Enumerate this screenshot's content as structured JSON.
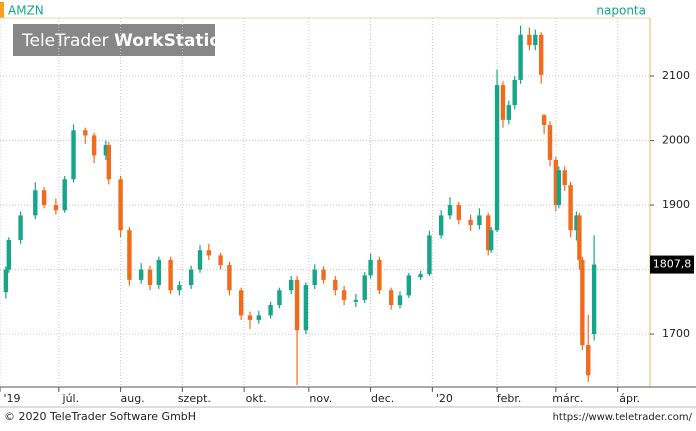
{
  "chart_data": {
    "type": "candlestick",
    "title": "AMZN",
    "subtitle": "naponta",
    "brand": [
      "TeleTrader",
      "WorkStation"
    ],
    "up_color": "#17a589",
    "down_color": "#f26b1d",
    "x": [
      0,
      1,
      5,
      10,
      13,
      17,
      20,
      23,
      27,
      30,
      34,
      35,
      39,
      42,
      46,
      49,
      52,
      56,
      59,
      63,
      66,
      69,
      73,
      76,
      80,
      83,
      86,
      90,
      93,
      97,
      99,
      102,
      105,
      108,
      112,
      115,
      119,
      122,
      124,
      127,
      131,
      134,
      137,
      141,
      144,
      148,
      151,
      154,
      158,
      161,
      164,
      165,
      167,
      169,
      171,
      173,
      175,
      178,
      180,
      182,
      183,
      185,
      187,
      188,
      190,
      192,
      194,
      195,
      196,
      198,
      200
    ],
    "open": [
      1765,
      1800,
      1846,
      1884,
      1923,
      1900,
      1892,
      1940,
      2016,
      2008,
      1977,
      1993,
      1940,
      1861,
      1784,
      1800,
      1776,
      1815,
      1768,
      1776,
      1800,
      1830,
      1822,
      1807,
      1768,
      1729,
      1722,
      1729,
      1745,
      1768,
      1784,
      1706,
      1776,
      1800,
      1784,
      1768,
      1750,
      1753,
      1791,
      1815,
      1768,
      1745,
      1760,
      1788,
      1793,
      1853,
      1884,
      1900,
      1877,
      1869,
      1884,
      1830,
      1861,
      2086,
      2032,
      2055,
      2094,
      2164,
      2148,
      2164,
      2040,
      2024,
      1970,
      1900,
      1954,
      1931,
      1861,
      1884,
      1815,
      1683,
      1700
    ],
    "high": [
      1805,
      1850,
      1890,
      1935,
      1928,
      1910,
      1945,
      2025,
      2020,
      2012,
      2000,
      1998,
      1945,
      1866,
      1810,
      1806,
      1820,
      1820,
      1782,
      1806,
      1838,
      1840,
      1826,
      1812,
      1772,
      1735,
      1736,
      1750,
      1772,
      1790,
      1790,
      1780,
      1808,
      1805,
      1790,
      1775,
      1762,
      1796,
      1825,
      1820,
      1772,
      1766,
      1795,
      1798,
      1860,
      1892,
      1912,
      1905,
      1885,
      1895,
      1888,
      1866,
      2110,
      2092,
      2062,
      2100,
      2178,
      2175,
      2172,
      2168,
      2040,
      2030,
      1975,
      1960,
      1960,
      1936,
      1890,
      1888,
      1820,
      1730,
      1853
    ],
    "low": [
      1755,
      1795,
      1840,
      1878,
      1895,
      1885,
      1888,
      1935,
      1995,
      1965,
      1970,
      1932,
      1850,
      1775,
      1778,
      1768,
      1770,
      1762,
      1760,
      1770,
      1795,
      1815,
      1800,
      1760,
      1722,
      1708,
      1716,
      1724,
      1740,
      1762,
      1621,
      1700,
      1770,
      1778,
      1760,
      1745,
      1742,
      1748,
      1786,
      1762,
      1738,
      1740,
      1756,
      1784,
      1790,
      1848,
      1878,
      1870,
      1860,
      1862,
      1822,
      1826,
      1858,
      2020,
      2025,
      2048,
      2088,
      2140,
      2140,
      2088,
      2010,
      1960,
      1890,
      1895,
      1922,
      1850,
      1845,
      1800,
      1675,
      1626,
      1690
    ],
    "close": [
      1800,
      1846,
      1884,
      1923,
      1900,
      1892,
      1940,
      2016,
      2008,
      1977,
      1993,
      1940,
      1861,
      1784,
      1800,
      1776,
      1815,
      1768,
      1776,
      1800,
      1830,
      1822,
      1807,
      1768,
      1729,
      1722,
      1729,
      1745,
      1768,
      1784,
      1706,
      1776,
      1800,
      1784,
      1768,
      1753,
      1753,
      1791,
      1815,
      1768,
      1745,
      1760,
      1791,
      1793,
      1853,
      1884,
      1900,
      1877,
      1869,
      1884,
      1830,
      1861,
      2086,
      2032,
      2055,
      2094,
      2164,
      2148,
      2164,
      2102,
      2024,
      1970,
      1900,
      1954,
      1931,
      1861,
      1884,
      1815,
      1683,
      1636,
      1807.8
    ],
    "last": {
      "value": 1807.8,
      "label": "1807,8"
    },
    "xlim": [
      -2,
      219
    ],
    "ylim": [
      1618,
      2190
    ],
    "xticks": [
      {
        "value": -2,
        "label": "'19"
      },
      {
        "value": 18,
        "label": "júl."
      },
      {
        "value": 39,
        "label": "aug."
      },
      {
        "value": 60,
        "label": "szept."
      },
      {
        "value": 81,
        "label": "okt."
      },
      {
        "value": 103,
        "label": "nov."
      },
      {
        "value": 124,
        "label": "dec."
      },
      {
        "value": 145,
        "label": "'20"
      },
      {
        "value": 167,
        "label": "febr."
      },
      {
        "value": 187,
        "label": "márc."
      },
      {
        "value": 208,
        "label": "ápr."
      }
    ],
    "yticks": [
      1700,
      1800,
      1900,
      2000,
      2100
    ],
    "grid": true
  },
  "footer": {
    "copyright": "© 2020 TeleTrader Software GmbH",
    "url": "https://www.teletrader.com/"
  }
}
